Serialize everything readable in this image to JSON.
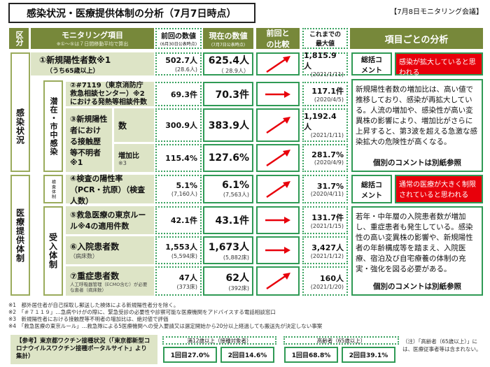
{
  "title": "感染状況・医療提供体制の分析（7月7日時点）",
  "meeting": "【7月8日モニタリング会議】",
  "header": {
    "kubun": "区分",
    "item": "モニタリング項目",
    "item_note": "※①～⑤は７日間移動平均で算出",
    "prev": "前回の数値",
    "prev_note": "(6月30日公表時点)",
    "cur": "現在の数値",
    "cur_note": "(7月7日公表時点)",
    "compare": "前回との比較",
    "max": "これまでの最大値",
    "analysis": "項目ごとの分析"
  },
  "groups": {
    "infection": "感染状況",
    "medical": "医療提供体制",
    "latent": "潜在・市中感染",
    "testing": "検査体制",
    "acceptance": "受入体制"
  },
  "rows": [
    {
      "label": "①新規陽性者数※1",
      "sub": "（うち65歳以上）",
      "prev": "502.7人",
      "prev_sub": "(28.6人)",
      "cur": "625.4人",
      "cur_sub": "（ 28.9人）",
      "trend": "up",
      "max": "1,815.9人",
      "max_date": "(2021/1/11)"
    },
    {
      "label": "②#7119（東京消防庁救急相談センター）※2における発熱等相談件数",
      "prev": "69.3件",
      "cur": "70.3件",
      "trend": "flat",
      "max": "117.1件",
      "max_date": "(2020/4/5)"
    },
    {
      "label": "③新規陽性者における接触歴等不明者※1",
      "sublabel": "数",
      "prev": "300.9人",
      "cur": "383.9人",
      "trend": "up",
      "max": "1,192.4人",
      "max_date": "(2021/1/11)"
    },
    {
      "sublabel": "増加比",
      "sublabel_note": "※3",
      "prev": "115.4%",
      "cur": "127.6%",
      "trend": "up",
      "max": "281.7%",
      "max_date": "(2020/4/9)"
    },
    {
      "label": "④検査の陽性率（PCR・抗原）（検査人数）",
      "prev": "5.1%",
      "prev_sub": "(7,160人)",
      "cur": "6.1%",
      "cur_sub": "(7,563人)",
      "trend": "up",
      "max": "31.7%",
      "max_date": "(2020/4/11)"
    },
    {
      "label": "⑤救急医療の東京ルール※4の適用件数",
      "prev": "42.1件",
      "cur": "43.1件",
      "trend": "flat",
      "max": "131.7件",
      "max_date": "(2021/1/15)"
    },
    {
      "label": "⑥入院患者数",
      "sub": "（病床数）",
      "prev": "1,553人",
      "prev_sub": "(5,594床)",
      "cur": "1,673人",
      "cur_sub": "(5,882床)",
      "trend": "flat",
      "max": "3,427人",
      "max_date": "(2021/1/12)"
    },
    {
      "label": "⑦重症患者数",
      "sub": "人工呼吸器管理（ECMO含む）が必要な患者（病床数）",
      "prev": "47人",
      "prev_sub": "(373床)",
      "cur": "62人",
      "cur_sub": "(392床)",
      "trend": "up",
      "max": "160人",
      "max_date": "(2021/1/20)"
    }
  ],
  "analysis": {
    "summary_label": "総括コメント",
    "infection_summary": "感染が拡大していると思われる",
    "infection_text": "新規陽性者数の増加比は、高い値で推移しており、感染が再拡大している。人流の増加や、感染性が高い変異株の影響により、増加比がさらに上昇すると、第3波を超える急激な感染拡大の危険性が高くなる。",
    "medical_summary": "通常の医療が大きく制限されていると思われる",
    "medical_text": "若年・中年層の入院患者数が増加し、重症患者も発生している。感染性の高い変異株の影響や、新規陽性者の年齢構成等を踏まえ、入院医療、宿泊及び自宅療養の体制の充実・強化を図る必要がある。",
    "see_attached": "個別のコメントは別紙参照"
  },
  "footnotes": [
    "※1　都外居住者が自己採取し郵送した検体による新規陽性者分を除く。",
    "※2　「＃７１１９」…急病やけがの際に、緊急受診の必要性や診察可能な医療機関をアドバイスする電話相談窓口",
    "※3　新規陽性者における接触歴等不明者の増加比は、絶対値で評価",
    "※4　「救急医療の東京ルール」…救急隊による5医療機関への受入要請又は選定開始から20分以上経過しても搬送先が決定しない事案"
  ],
  "vaccine": {
    "ref": "【参考】東京都ワクチン接種状況（「東京都新型コロナウイルスワクチン接種ポータルサイト」より集計）",
    "group1": "満12歳以上（接種対象者）",
    "g1_first": "1回目27.0%",
    "g1_second": "2回目14.6%",
    "group2": "高齢者（65歳以上）",
    "g2_first": "1回目68.8%",
    "g2_second": "2回目39.1%",
    "note": "（注）「高齢者（65歳以上）」には、医療従事者等は含まれない。"
  },
  "colors": {
    "header": "#77883a",
    "label_bg": "#dde4c6",
    "border": "#2f9a55",
    "alert": "#e8000b",
    "arrow": "#e8000b"
  }
}
